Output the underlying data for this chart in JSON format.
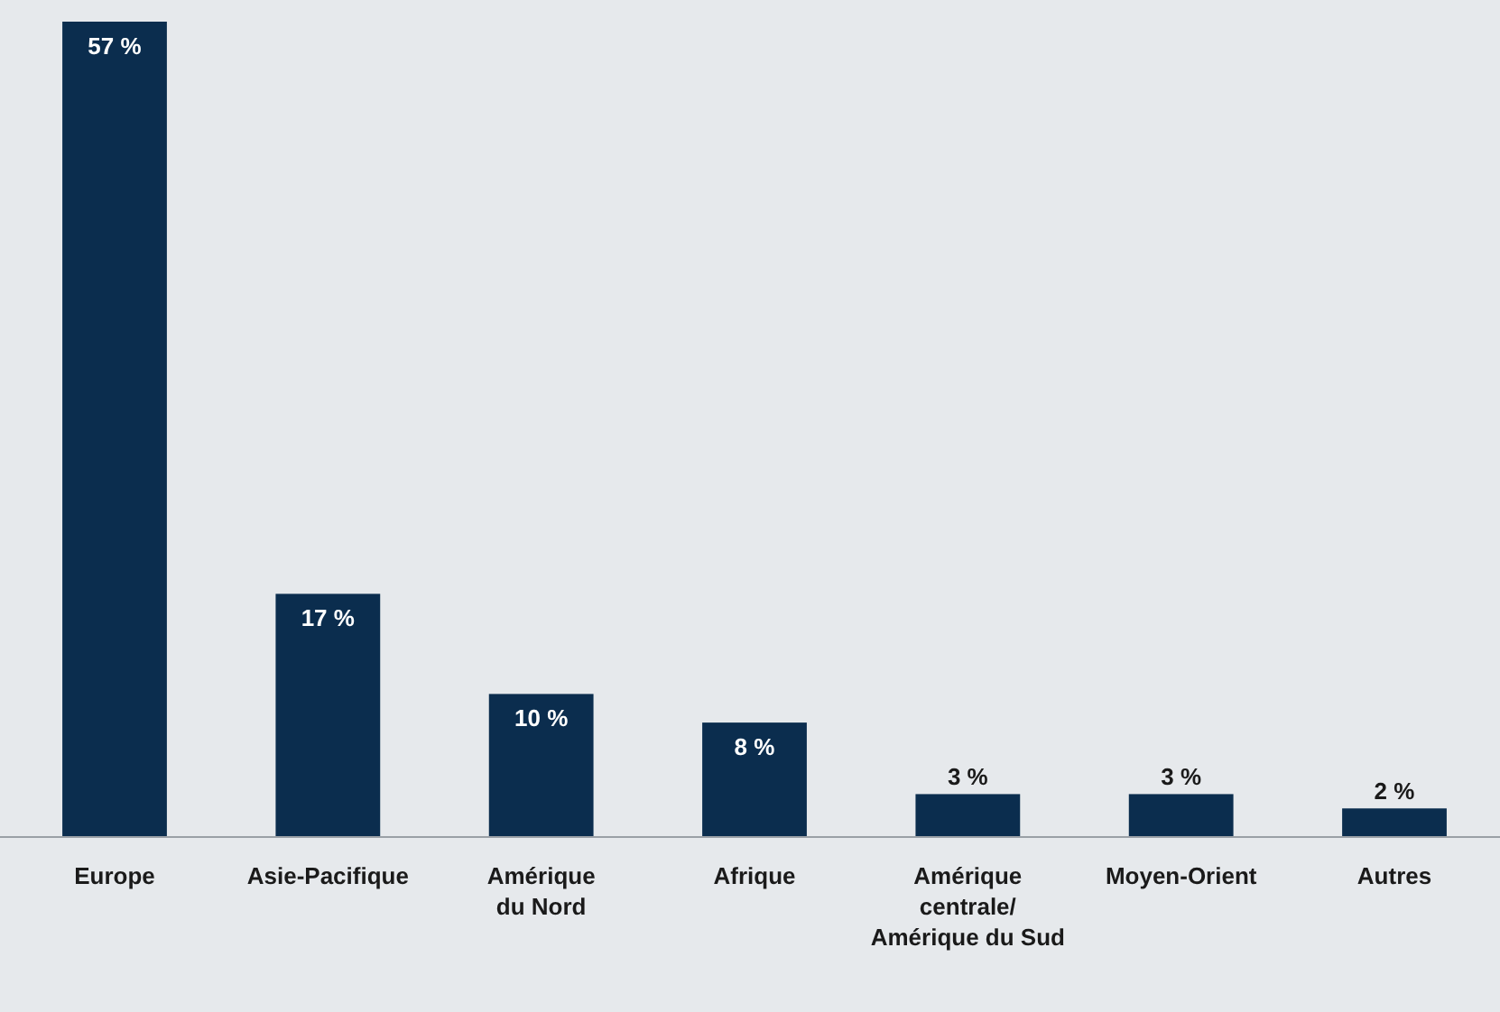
{
  "chart_data": {
    "type": "bar",
    "categories": [
      "Europe",
      "Asie-Pacifique",
      "Amérique\ndu Nord",
      "Afrique",
      "Amérique\ncentrale/\nAmérique du Sud",
      "Moyen-Orient",
      "Autres"
    ],
    "values": [
      57,
      17,
      10,
      8,
      3,
      3,
      2
    ],
    "value_labels": [
      "57 %",
      "17 %",
      "10 %",
      "8 %",
      "3 %",
      "3 %",
      "2 %"
    ],
    "color": "#0b2d4e"
  }
}
